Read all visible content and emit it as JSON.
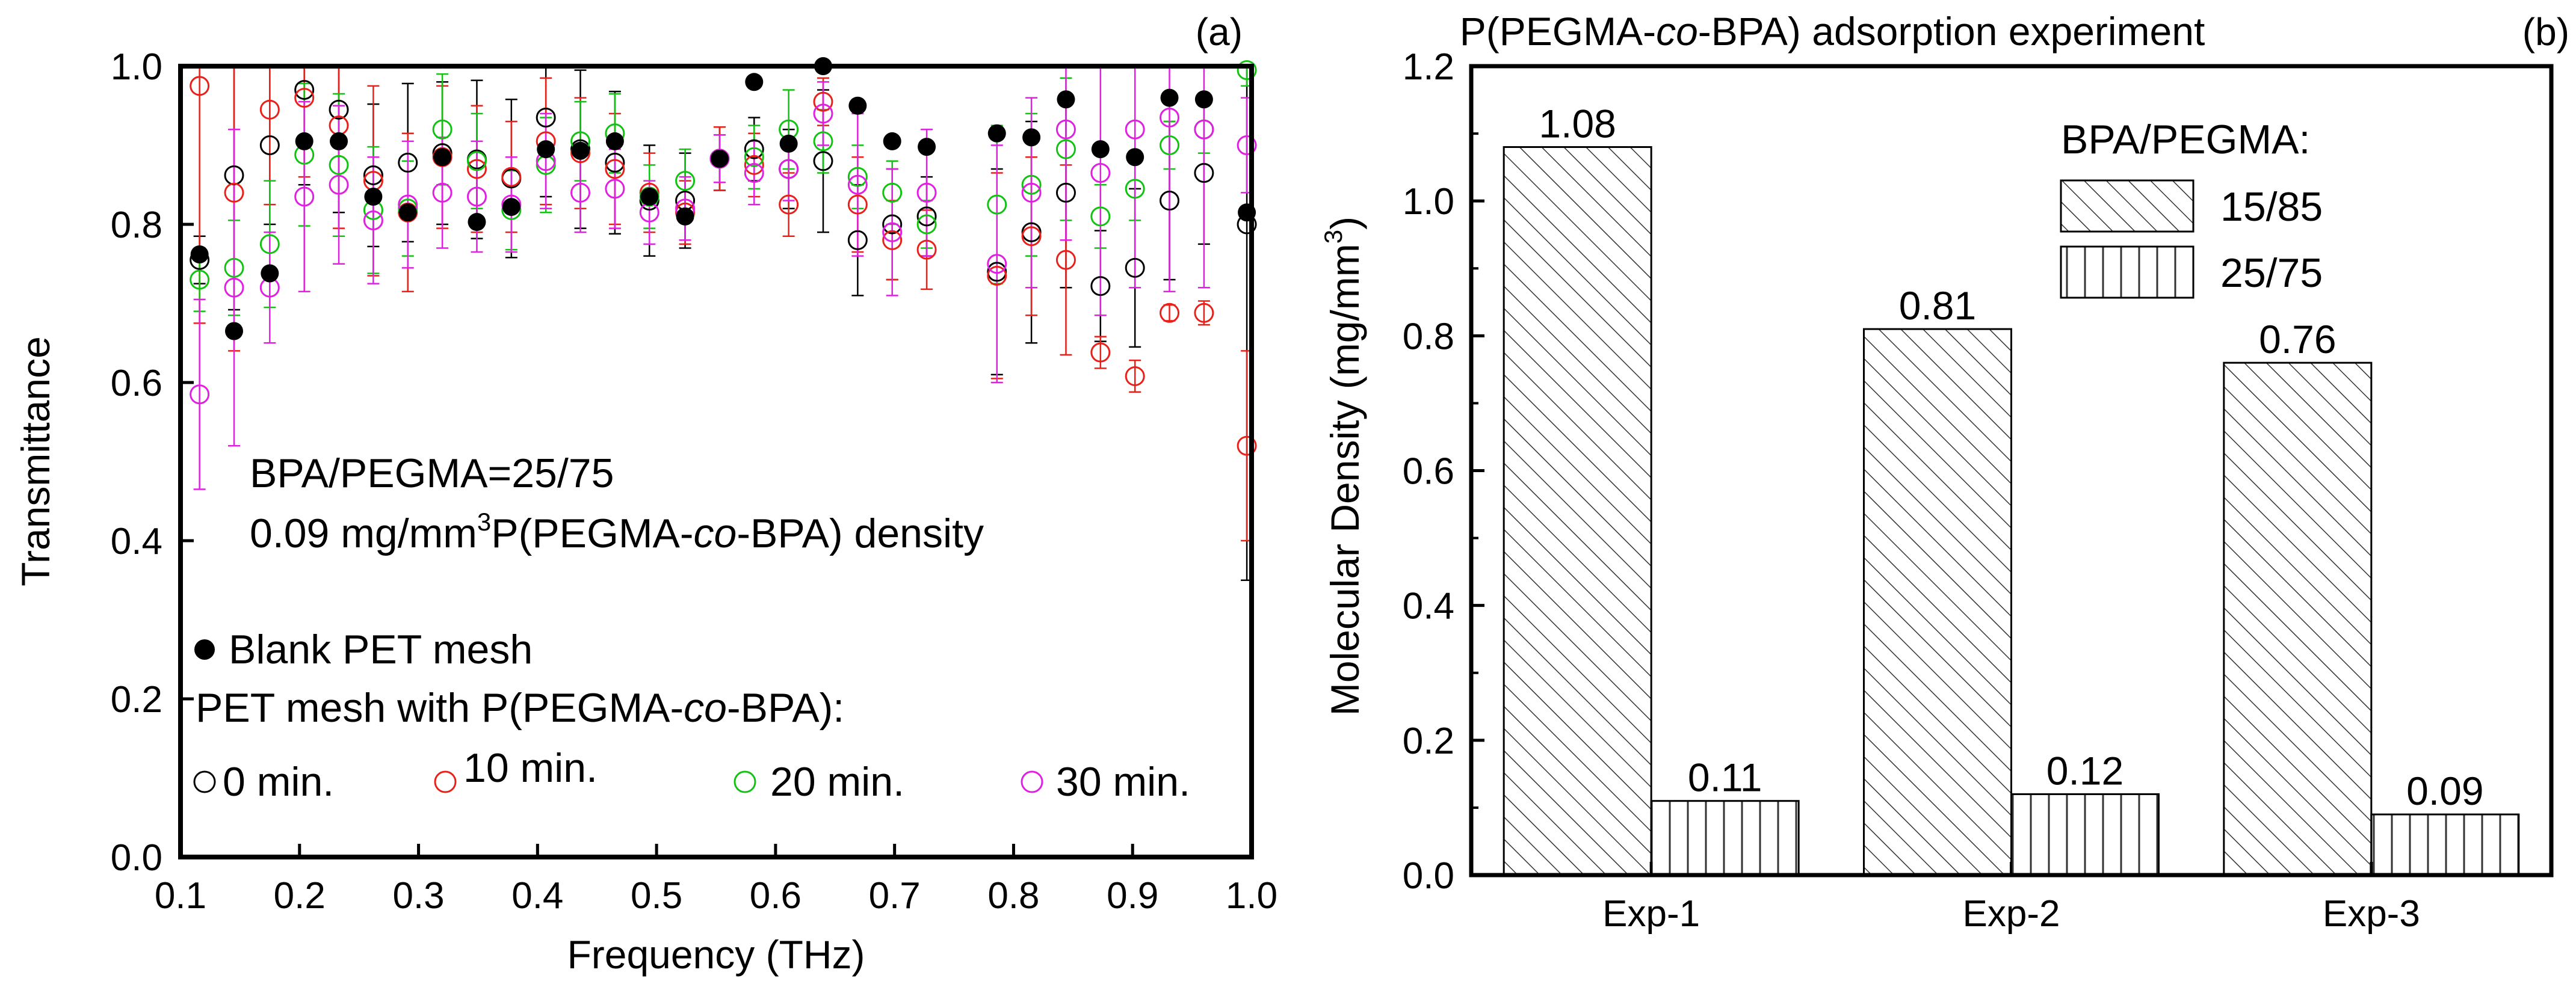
{
  "chart_data": [
    {
      "type": "scatter",
      "panel": "(a)",
      "xlabel": "Frequency (THz)",
      "ylabel": "Transmittance",
      "xlim": [
        0.1,
        1.0
      ],
      "ylim": [
        0.0,
        1.0
      ],
      "xticks": [
        0.1,
        0.2,
        0.3,
        0.4,
        0.5,
        0.6,
        0.7,
        0.8,
        0.9,
        1.0
      ],
      "xtick_labels": [
        "0.1",
        "0.2",
        "0.3",
        "0.4",
        "0.5",
        "0.6",
        "0.7",
        "0.8",
        "0.9",
        "1.0"
      ],
      "yticks": [
        0.0,
        0.2,
        0.4,
        0.6,
        0.8,
        1.0
      ],
      "ytick_labels": [
        "0.0",
        "0.2",
        "0.4",
        "0.6",
        "0.8",
        "1.0"
      ],
      "annotation_line1": "BPA/PEGMA=25/75",
      "annotation_line2": {
        "prefix": "0.09 mg/mm",
        "sup": "3",
        "mid": "P(PEGMA-",
        "ital": "co",
        "suffix": "-BPA) density"
      },
      "legend_blank": "Blank PET mesh",
      "legend_header": {
        "prefix": "PET mesh with P(PEGMA-",
        "ital": "co",
        "suffix": "-BPA):"
      },
      "x": [
        0.116,
        0.145,
        0.175,
        0.204,
        0.233,
        0.262,
        0.291,
        0.32,
        0.349,
        0.378,
        0.407,
        0.436,
        0.465,
        0.494,
        0.524,
        0.553,
        0.582,
        0.611,
        0.64,
        0.669,
        0.698,
        0.727,
        0.786,
        0.815,
        0.844,
        0.873,
        0.902,
        0.931,
        0.96,
        0.996
      ],
      "series": [
        {
          "name": "Blank PET mesh",
          "marker": "filled",
          "color": "#000000",
          "values": [
            0.762,
            0.665,
            0.738,
            0.905,
            0.905,
            0.835,
            0.815,
            0.885,
            0.803,
            0.822,
            0.895,
            0.893,
            0.905,
            0.835,
            0.81,
            0.883,
            0.98,
            0.902,
            1.0,
            0.95,
            0.905,
            0.898,
            0.915,
            0.91,
            0.958,
            0.895,
            0.885,
            0.96,
            0.958,
            0.815
          ],
          "err": [
            0.01,
            0.02,
            0.02,
            0.02,
            0.02,
            0.02,
            0.01,
            0.02,
            0.01,
            0.01,
            0.01,
            0.01,
            0.01,
            0.01,
            0.01,
            0.01,
            0.01,
            0.02,
            0.01,
            0.02,
            0.01,
            0.01,
            0.01,
            0.02,
            0.02,
            0.02,
            0.02,
            0.02,
            0.02,
            0.02
          ]
        },
        {
          "name": "0 min.",
          "marker": "open",
          "color": "#000000",
          "values": [
            0.755,
            0.862,
            0.9,
            0.97,
            0.945,
            0.862,
            0.878,
            0.89,
            0.882,
            0.858,
            0.935,
            0.895,
            0.878,
            0.83,
            0.83,
            0.883,
            0.895,
            0.87,
            0.88,
            0.78,
            0.8,
            0.81,
            0.74,
            0.79,
            0.84,
            0.722,
            0.745,
            0.83,
            0.865,
            0.8
          ],
          "err": [
            0.03,
            0.17,
            0.1,
            0.12,
            0.13,
            0.09,
            0.1,
            0.09,
            0.1,
            0.1,
            0.1,
            0.1,
            0.09,
            0.07,
            0.06,
            0.04,
            0.04,
            0.05,
            0.09,
            0.07,
            0.07,
            0.05,
            0.13,
            0.14,
            0.12,
            0.07,
            0.1,
            0.1,
            0.09,
            0.45
          ]
        },
        {
          "name": "10 min.",
          "marker": "open",
          "color": "#e8201a",
          "values": [
            0.975,
            0.84,
            0.945,
            0.96,
            0.925,
            0.855,
            0.815,
            0.885,
            0.87,
            0.86,
            0.905,
            0.89,
            0.87,
            0.84,
            0.815,
            0.883,
            0.875,
            0.825,
            0.955,
            0.825,
            0.78,
            0.768,
            0.735,
            0.785,
            0.755,
            0.638,
            0.608,
            0.688,
            0.688,
            0.52
          ],
          "err": [
            0.3,
            0.2,
            0.12,
            0.1,
            0.13,
            0.12,
            0.1,
            0.09,
            0.08,
            0.07,
            0.08,
            0.07,
            0.07,
            0.05,
            0.04,
            0.04,
            0.04,
            0.04,
            0.03,
            0.06,
            0.05,
            0.05,
            0.13,
            0.1,
            0.12,
            0.02,
            0.02,
            0.01,
            0.015,
            0.12
          ]
        },
        {
          "name": "20 min.",
          "marker": "open",
          "color": "#12c212",
          "values": [
            0.73,
            0.745,
            0.775,
            0.888,
            0.875,
            0.818,
            0.82,
            0.92,
            0.88,
            0.818,
            0.875,
            0.905,
            0.915,
            0.835,
            0.855,
            0.883,
            0.885,
            0.92,
            0.905,
            0.86,
            0.84,
            0.8,
            0.825,
            0.85,
            0.895,
            0.81,
            0.845,
            0.9,
            0.92,
            0.995
          ],
          "err": [
            0.04,
            0.06,
            0.08,
            0.09,
            0.09,
            0.08,
            0.06,
            0.07,
            0.06,
            0.05,
            0.06,
            0.05,
            0.05,
            0.04,
            0.04,
            0.03,
            0.04,
            0.05,
            0.04,
            0.04,
            0.04,
            0.03,
            0.1,
            0.09,
            0.09,
            0.04,
            0.04,
            0.03,
            0.03,
            0.02
          ]
        },
        {
          "name": "30 min.",
          "marker": "open",
          "color": "#e020e0",
          "values": [
            0.585,
            0.72,
            0.72,
            0.835,
            0.85,
            0.805,
            0.825,
            0.84,
            0.835,
            0.825,
            0.88,
            0.84,
            0.845,
            0.815,
            0.82,
            0.883,
            0.865,
            0.87,
            0.94,
            0.85,
            0.79,
            0.84,
            0.75,
            0.84,
            0.92,
            0.865,
            0.92,
            0.935,
            0.92,
            0.9
          ],
          "err": [
            0.12,
            0.2,
            0.07,
            0.12,
            0.1,
            0.08,
            0.08,
            0.07,
            0.07,
            0.06,
            0.06,
            0.05,
            0.05,
            0.04,
            0.04,
            0.03,
            0.04,
            0.04,
            0.04,
            0.09,
            0.08,
            0.08,
            0.15,
            0.12,
            0.14,
            0.18,
            0.2,
            0.22,
            0.2,
            0.06
          ]
        }
      ]
    },
    {
      "type": "bar",
      "panel": "(b)",
      "title": {
        "prefix": "P(PEGMA-",
        "ital": "co",
        "suffix": "-BPA) adsorption experiment"
      },
      "ylabel": {
        "prefix": "Molecular Density (mg/mm",
        "sup": "3",
        "suffix": ")"
      },
      "ylim": [
        0.0,
        1.2
      ],
      "yticks": [
        0.0,
        0.2,
        0.4,
        0.6,
        0.8,
        1.0,
        1.2
      ],
      "ytick_labels": [
        "0.0",
        "0.2",
        "0.4",
        "0.6",
        "0.8",
        "1.0",
        "1.2"
      ],
      "categories": [
        "Exp-1",
        "Exp-2",
        "Exp-3"
      ],
      "legend_title": "BPA/PEGMA:",
      "series": [
        {
          "name": "15/85",
          "pattern": "diagonal",
          "values": [
            1.08,
            0.81,
            0.76
          ],
          "labels": [
            "1.08",
            "0.81",
            "0.76"
          ]
        },
        {
          "name": "25/75",
          "pattern": "vertical",
          "values": [
            0.11,
            0.12,
            0.09
          ],
          "labels": [
            "0.11",
            "0.12",
            "0.09"
          ]
        }
      ]
    }
  ]
}
